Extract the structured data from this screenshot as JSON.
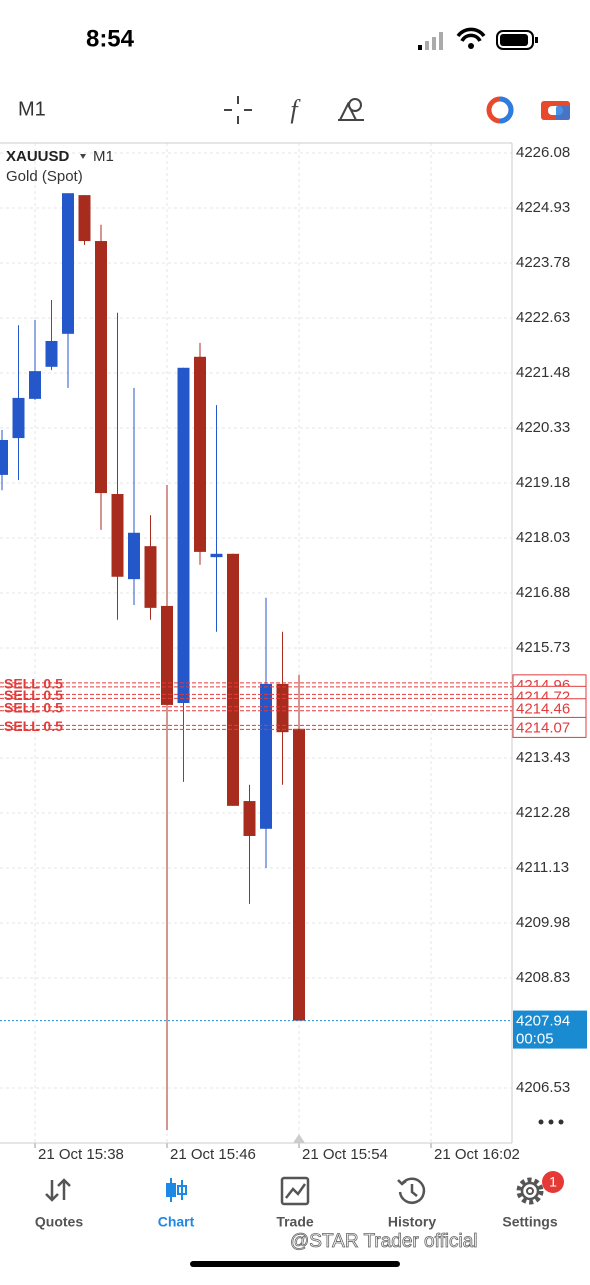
{
  "status_bar": {
    "time": "8:54"
  },
  "toolbar": {
    "timeframe": "M1"
  },
  "chart_data": {
    "type": "candlestick",
    "symbol": "XAUUSD",
    "timeframe": "M1",
    "description": "Gold (Spot)",
    "categories": [
      null,
      null,
      "21 Oct 15:38",
      null,
      null,
      null,
      null,
      null,
      null,
      null,
      "21 Oct 15:46",
      null,
      null,
      null,
      null,
      null,
      null,
      null,
      "21 Oct 15:54",
      null,
      null,
      null,
      null,
      null,
      null,
      null,
      "21 Oct 16:02"
    ],
    "open": [
      4219.35,
      4220.12,
      4220.94,
      4221.61,
      4222.3,
      4225.2,
      4224.24,
      4218.95,
      4217.17,
      4217.86,
      4216.61,
      4214.58,
      4221.82,
      4217.63,
      4217.7,
      4212.53,
      4211.95,
      4214.98,
      4214.04,
      null,
      null,
      null,
      null,
      null,
      null,
      null,
      null
    ],
    "high": [
      4220.29,
      4222.48,
      4222.59,
      4223.01,
      4225.24,
      4225.2,
      4224.58,
      4222.74,
      4221.17,
      4218.51,
      4219.14,
      4221.59,
      4222.11,
      4220.81,
      4217.7,
      4212.87,
      4216.78,
      4216.07,
      4215.17,
      null,
      null,
      null,
      null,
      null,
      null,
      null,
      null
    ],
    "low": [
      4219.03,
      4219.24,
      4220.92,
      4221.54,
      4221.17,
      4224.16,
      4218.2,
      4216.32,
      4216.63,
      4216.32,
      4205.65,
      4212.93,
      4217.47,
      4216.07,
      4212.43,
      4210.38,
      4211.13,
      4212.87,
      4207.94,
      null,
      null,
      null,
      null,
      null,
      null,
      null,
      null
    ],
    "close": [
      4220.08,
      4220.96,
      4221.52,
      4222.15,
      4225.24,
      4224.24,
      4218.97,
      4217.22,
      4218.14,
      4216.57,
      4214.54,
      4221.59,
      4217.74,
      4217.7,
      4212.43,
      4211.8,
      4214.98,
      4213.97,
      4207.94,
      null,
      null,
      null,
      null,
      null,
      null,
      null,
      null
    ],
    "up_color": "#2457c9",
    "down_color": "#a82c1d",
    "ylim": [
      4205.38,
      4226.29
    ],
    "yticks": [
      4226.08,
      4224.93,
      4223.78,
      4222.63,
      4221.48,
      4220.33,
      4219.18,
      4218.03,
      4216.88,
      4215.73,
      4213.43,
      4212.28,
      4211.13,
      4209.98,
      4208.83,
      4206.53
    ],
    "grid": true,
    "orders": [
      {
        "label": "SELL 0.5",
        "price": 4214.96
      },
      {
        "label": "SELL 0.5",
        "price": 4214.72
      },
      {
        "label": "SELL 0.5",
        "price": 4214.46
      },
      {
        "label": "SELL 0.5",
        "price": 4214.07
      }
    ],
    "order_color": "#e23b3b",
    "current_price": 4207.94,
    "countdown": "00:05",
    "current_color": "#1b8bd1"
  },
  "tab_bar": {
    "tabs": [
      "Quotes",
      "Chart",
      "Trade",
      "History",
      "Settings"
    ],
    "active": 1,
    "badge": "1"
  },
  "watermark": "@STAR Trader official"
}
